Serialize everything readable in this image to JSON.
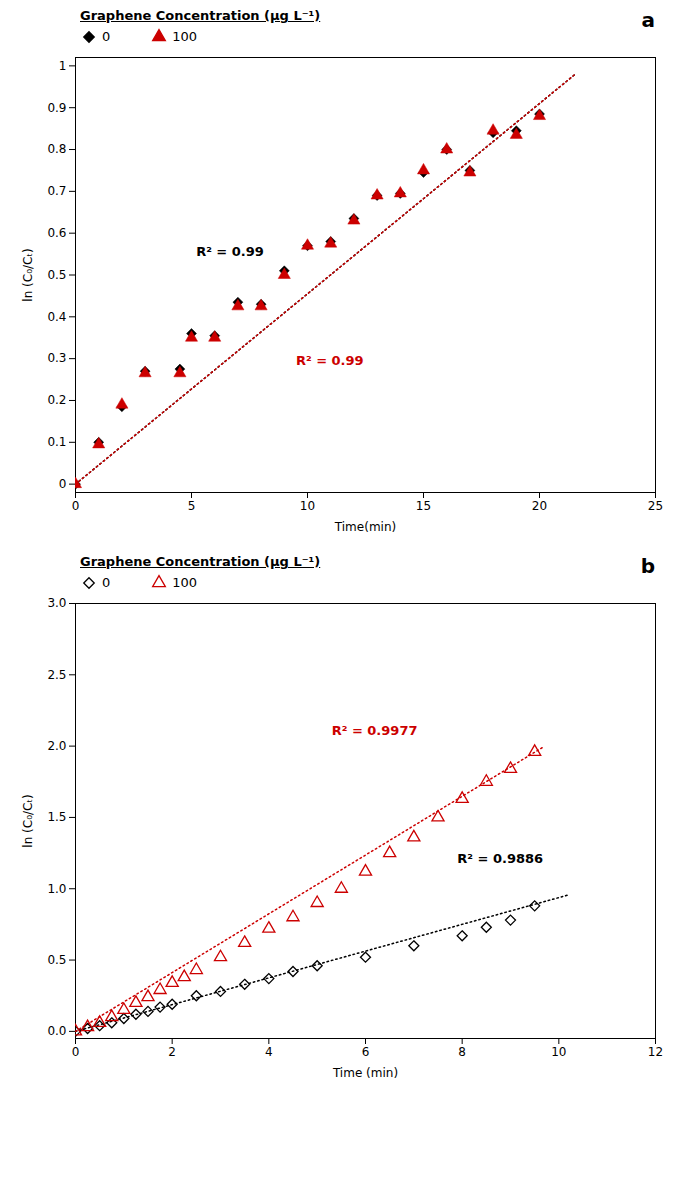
{
  "chart_data": [
    {
      "type": "scatter",
      "title": "a",
      "xlabel": "Time(min)",
      "ylabel": "ln (C₀/Cₜ)",
      "xlim": [
        0,
        25
      ],
      "ylim": [
        -0.02,
        1.02
      ],
      "xticks": [
        0,
        5,
        10,
        15,
        20,
        25
      ],
      "yticks": [
        0,
        0.1,
        0.2,
        0.3,
        0.4,
        0.5,
        0.6,
        0.7,
        0.8,
        0.9,
        1
      ],
      "grid": false,
      "legend": "upper left",
      "legend_title": "Graphene Concentration (μg L⁻¹)",
      "series": [
        {
          "type": "line",
          "line_style": "dotted",
          "color": "#000000",
          "x": [
            0,
            21.5
          ],
          "values": [
            0,
            0.97825
          ]
        },
        {
          "type": "line",
          "line_style": "dotted",
          "color": "#cc0000",
          "x": [
            0,
            21.5
          ],
          "values": [
            0,
            0.97825
          ]
        },
        {
          "name": "0",
          "color": "#000000",
          "marker": "diamond",
          "x": [
            0,
            1,
            2,
            3,
            4.5,
            5,
            6,
            7,
            8,
            9,
            10,
            11,
            12,
            13,
            14,
            15,
            16,
            17,
            18,
            19,
            20
          ],
          "values": [
            0,
            0.1,
            0.185,
            0.27,
            0.275,
            0.36,
            0.355,
            0.435,
            0.43,
            0.51,
            0.57,
            0.58,
            0.635,
            0.69,
            0.695,
            0.745,
            0.8,
            0.75,
            0.84,
            0.845,
            0.885
          ]
        },
        {
          "name": "100",
          "color": "#cc0000",
          "marker": "triangle",
          "x": [
            0,
            1,
            2,
            3,
            4.5,
            5,
            6,
            7,
            8,
            9,
            10,
            11,
            12,
            13,
            14,
            15,
            16,
            17,
            18,
            19,
            20
          ],
          "values": [
            0,
            0.095,
            0.19,
            0.265,
            0.265,
            0.35,
            0.35,
            0.425,
            0.425,
            0.5,
            0.57,
            0.575,
            0.63,
            0.69,
            0.695,
            0.75,
            0.8,
            0.745,
            0.845,
            0.835,
            0.88
          ]
        }
      ],
      "annotations": [
        {
          "text": "R² = 0.99",
          "x": 5.2,
          "y": 0.545,
          "color": "#000000"
        },
        {
          "text": "R² = 0.99",
          "x": 9.5,
          "y": 0.285,
          "color": "#cc0000"
        }
      ]
    },
    {
      "type": "scatter",
      "title": "b",
      "xlabel": "Time (min)",
      "ylabel": "ln (C₀/Cₜ)",
      "xlim": [
        0,
        12
      ],
      "ylim": [
        -0.05,
        3.0
      ],
      "xticks": [
        0,
        2,
        4,
        6,
        8,
        10,
        12
      ],
      "yticks": [
        {
          "value": 0,
          "label": "0.0"
        },
        {
          "value": 0.5,
          "label": "0.5"
        },
        {
          "value": 1.0,
          "label": "1.0"
        },
        {
          "value": 1.5,
          "label": "1.5"
        },
        {
          "value": 2.0,
          "label": "2.0"
        },
        {
          "value": 2.5,
          "label": "2.5"
        },
        {
          "value": 3.0,
          "label": "3.0"
        }
      ],
      "grid": false,
      "legend": "upper left",
      "legend_title": "Graphene Concentration (μg L⁻¹)",
      "series": [
        {
          "type": "line",
          "line_style": "dotted",
          "color": "#000000",
          "x": [
            0,
            10.2
          ],
          "values": [
            0,
            0.95676
          ]
        },
        {
          "type": "line",
          "line_style": "dotted",
          "color": "#cc0000",
          "x": [
            0,
            9.7
          ],
          "values": [
            0,
            1.9982
          ]
        },
        {
          "name": "0",
          "color": "#000000",
          "marker": "diamond-open",
          "x": [
            0,
            0.25,
            0.5,
            0.75,
            1.0,
            1.25,
            1.5,
            1.75,
            2.0,
            2.5,
            3.0,
            3.5,
            4.0,
            4.5,
            5.0,
            6.0,
            7.0,
            8.0,
            8.5,
            9.0,
            9.5
          ],
          "values": [
            0,
            0.02,
            0.04,
            0.06,
            0.09,
            0.12,
            0.14,
            0.17,
            0.19,
            0.25,
            0.28,
            0.33,
            0.37,
            0.42,
            0.46,
            0.52,
            0.6,
            0.67,
            0.73,
            0.78,
            0.88
          ]
        },
        {
          "name": "100",
          "color": "#cc0000",
          "marker": "triangle-open",
          "x": [
            0,
            0.25,
            0.5,
            0.75,
            1.0,
            1.25,
            1.5,
            1.75,
            2.0,
            2.25,
            2.5,
            3.0,
            3.5,
            4.0,
            4.5,
            5.0,
            5.5,
            6.0,
            6.5,
            7.0,
            7.5,
            8.0,
            8.5,
            9.0,
            9.5
          ],
          "values": [
            0,
            0.03,
            0.06,
            0.1,
            0.15,
            0.2,
            0.24,
            0.29,
            0.34,
            0.38,
            0.43,
            0.52,
            0.62,
            0.72,
            0.8,
            0.9,
            1.0,
            1.12,
            1.25,
            1.36,
            1.5,
            1.63,
            1.75,
            1.84,
            1.96
          ]
        }
      ],
      "annotations": [
        {
          "text": "R² = 0.9886",
          "x": 7.9,
          "y": 1.18,
          "color": "#000000"
        },
        {
          "text": "R² = 0.9977",
          "x": 5.3,
          "y": 2.08,
          "color": "#cc0000"
        }
      ]
    }
  ]
}
